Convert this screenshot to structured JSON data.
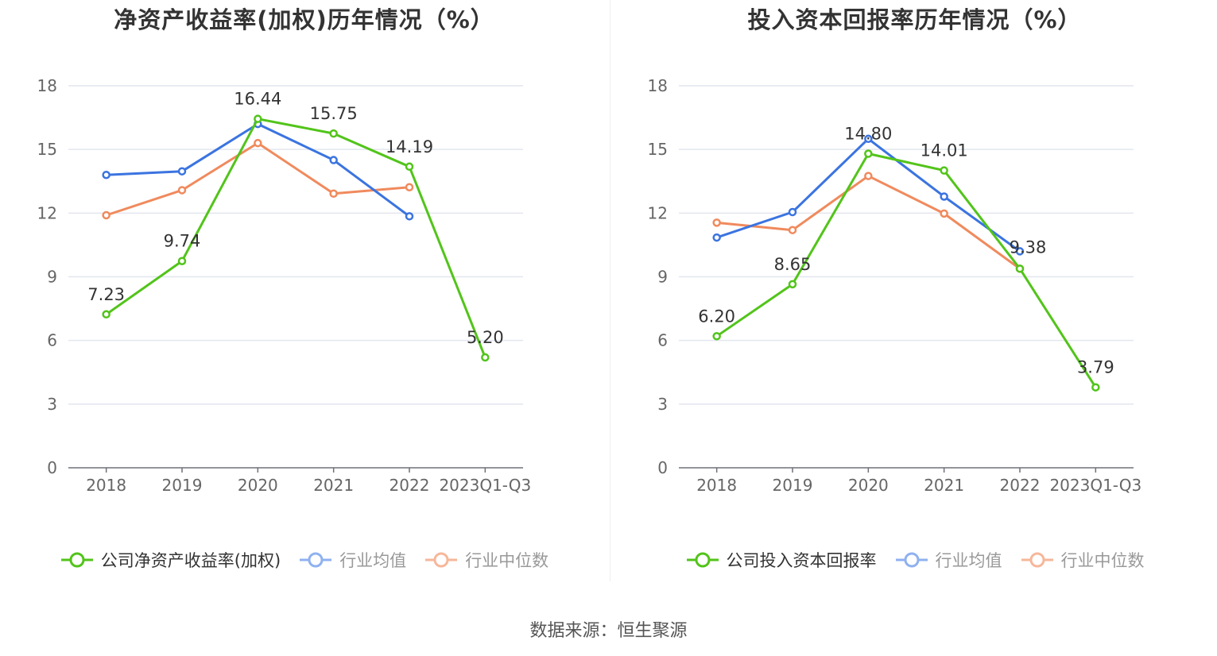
{
  "source_text": "数据来源：恒生聚源",
  "chart_data": [
    {
      "type": "line",
      "title": "净资产收益率(加权)历年情况（%）",
      "categories": [
        "2018",
        "2019",
        "2020",
        "2021",
        "2022",
        "2023Q1-Q3"
      ],
      "ylim": [
        0,
        18
      ],
      "yticks": [
        0,
        3,
        6,
        9,
        12,
        15,
        18
      ],
      "grid": true,
      "legend_position": "bottom",
      "series": [
        {
          "name": "公司净资产收益率(加权)",
          "color": "#52c41a",
          "values": [
            7.23,
            9.74,
            16.44,
            15.75,
            14.19,
            5.2
          ],
          "labels": [
            "7.23",
            "9.74",
            "16.44",
            "15.75",
            "14.19",
            "5.20"
          ]
        },
        {
          "name": "行业均值",
          "color": "#3b74e0",
          "values": [
            13.8,
            13.97,
            16.2,
            14.5,
            11.85,
            null
          ]
        },
        {
          "name": "行业中位数",
          "color": "#f08a5d",
          "values": [
            11.9,
            13.08,
            15.3,
            12.92,
            13.22,
            null
          ]
        }
      ]
    },
    {
      "type": "line",
      "title": "投入资本回报率历年情况（%）",
      "categories": [
        "2018",
        "2019",
        "2020",
        "2021",
        "2022",
        "2023Q1-Q3"
      ],
      "ylim": [
        0,
        18
      ],
      "yticks": [
        0,
        3,
        6,
        9,
        12,
        15,
        18
      ],
      "grid": true,
      "legend_position": "bottom",
      "series": [
        {
          "name": "公司投入资本回报率",
          "color": "#52c41a",
          "values": [
            6.2,
            8.65,
            14.8,
            14.01,
            9.38,
            3.79
          ],
          "labels": [
            "6.20",
            "8.65",
            "14.80",
            "14.01",
            "9.38",
            "3.79"
          ]
        },
        {
          "name": "行业均值",
          "color": "#3b74e0",
          "values": [
            10.85,
            12.05,
            15.5,
            12.78,
            10.2,
            null
          ]
        },
        {
          "name": "行业中位数",
          "color": "#f08a5d",
          "values": [
            11.55,
            11.2,
            13.75,
            11.98,
            9.38,
            null
          ]
        }
      ]
    }
  ]
}
